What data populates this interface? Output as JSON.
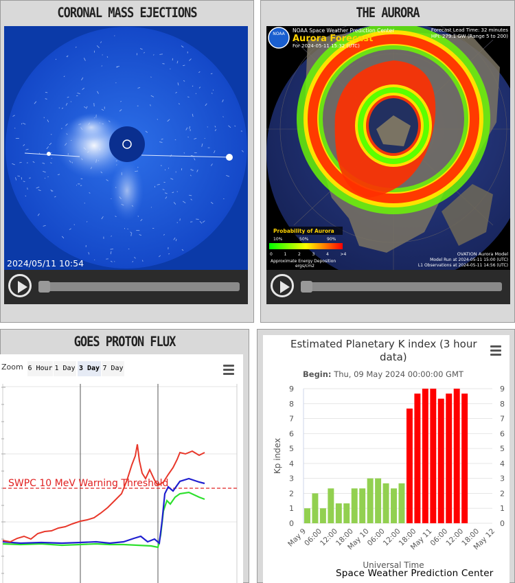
{
  "cme": {
    "title": "CORONAL MASS EJECTIONS",
    "timestamp": "2024/05/11  10:54"
  },
  "aurora": {
    "title": "THE AURORA",
    "agency": "NOAA Space Weather Prediction Center",
    "forecast_title": "Aurora Forecast",
    "forecast_for": "For 2024-05-11 15:32 (UTC)",
    "lead_time": "Forecast Lead Time:  32 minutes",
    "hpi": "HPI: 279.1 GW (Range 5 to 200)",
    "legend_title": "Probability of Aurora",
    "legend_pcts": [
      "10%",
      "50%",
      "90%"
    ],
    "legend_ticks": [
      "0",
      "1",
      "2",
      "3",
      "4",
      ">4"
    ],
    "energy_label": "Approximate Energy Deposition",
    "energy_unit": "ergs/cm2",
    "model_name": "OVATION Aurora Model",
    "model_run": "Model Run at 2024-05-11 15:00 (UTC)",
    "l1_obs": "L1 Observations at 2024-05-11 14:56 (UTC)",
    "logo_text": "NOAA"
  },
  "goes": {
    "title": "GOES PROTON FLUX",
    "zoom_label": "Zoom",
    "zoom_options": [
      "6 Hour",
      "1 Day",
      "3 Day",
      "7 Day"
    ],
    "zoom_selected": "3 Day",
    "threshold_label": "SWPC 10 MeV Warning Threshold",
    "colors": {
      "red": "#e8372a",
      "blue": "#1f1fd0",
      "green": "#2ee02e",
      "threshold": "#e02020"
    }
  },
  "kp": {
    "title_line1": "Estimated Planetary K index (3 hour",
    "title_line2": "data)",
    "begin_label": "Begin:",
    "begin_value": "Thu, 09 May 2024 00:00:00 GMT",
    "ylabel": "Kp index",
    "xlabel": "Universal Time",
    "credit": "Space Weather Prediction Center"
  },
  "chart_data": {
    "type": "bar",
    "title": "Estimated Planetary K index (3 hour data)",
    "xlabel": "Universal Time",
    "ylabel": "Kp index",
    "ylim": [
      0,
      9
    ],
    "yticks": [
      0,
      1,
      2,
      3,
      4,
      5,
      6,
      7,
      8,
      9
    ],
    "xtick_labels": [
      "May 9",
      "06:00",
      "12:00",
      "18:00",
      "May 10",
      "06:00",
      "12:00",
      "18:00",
      "May 11",
      "06:00",
      "12:00",
      "18:00",
      "May 12"
    ],
    "values": [
      1.0,
      2.0,
      1.0,
      2.33,
      1.33,
      1.33,
      2.33,
      2.33,
      3.0,
      3.0,
      2.67,
      2.33,
      2.67,
      7.67,
      8.67,
      9.0,
      9.0,
      8.33,
      8.67,
      9.0,
      8.67
    ],
    "colors": {
      "low": "#92d050",
      "high": "#ff0000"
    }
  }
}
